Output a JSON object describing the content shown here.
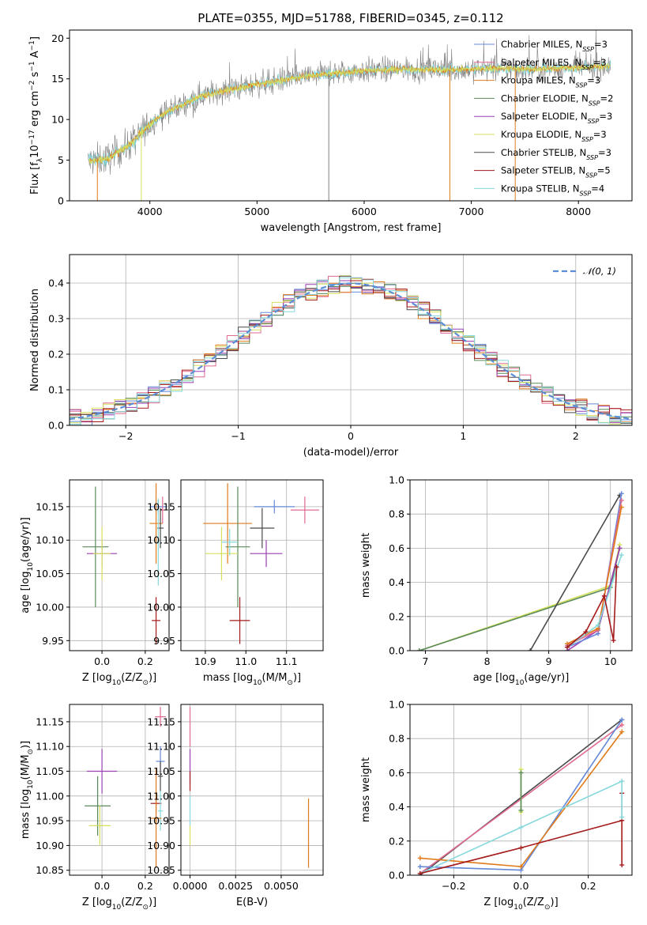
{
  "colors": {
    "chabrier_miles": "#6488d8",
    "salpeter_miles": "#e06a8f",
    "kroupa_miles": "#e07b1a",
    "chabrier_elodie": "#5a8a5a",
    "salpeter_elodie": "#9a3fb2",
    "kroupa_elodie": "#d6e05a",
    "chabrier_stelib": "#4a4a4a",
    "salpeter_stelib": "#a51a1a",
    "kroupa_stelib": "#86d8dc",
    "data_spectrum": "#808080",
    "normal_curve": "#5b8ed6"
  },
  "chart_data": [
    {
      "id": "spectrum",
      "type": "line",
      "title": "PLATE=0355, MJD=51788, FIBERID=0345, z=0.112",
      "xlabel": "wavelength [Angstrom, rest frame]",
      "ylabel_parts": [
        "Flux [f",
        "λ",
        "10",
        "−17",
        " erg cm",
        "−2",
        " s",
        "−1",
        " A",
        "−1",
        "]"
      ],
      "xlim": [
        3250,
        8500
      ],
      "ylim": [
        0,
        21
      ],
      "xticks": [
        4000,
        5000,
        6000,
        7000,
        8000
      ],
      "yticks": [
        0,
        5,
        10,
        15,
        20
      ],
      "grid": false,
      "legend_position": "top-right",
      "legend": [
        {
          "key": "chabrier_miles",
          "parts": [
            "Chabrier MILES, N",
            "SSP",
            "=3"
          ]
        },
        {
          "key": "salpeter_miles",
          "parts": [
            "Salpeter MILES, N",
            "SSP",
            "=3"
          ]
        },
        {
          "key": "kroupa_miles",
          "parts": [
            "Kroupa MILES, N",
            "SSP",
            "=3"
          ]
        },
        {
          "key": "chabrier_elodie",
          "parts": [
            "Chabrier ELODIE, N",
            "SSP",
            "=2"
          ]
        },
        {
          "key": "salpeter_elodie",
          "parts": [
            "Salpeter ELODIE, N",
            "SSP",
            "=3"
          ]
        },
        {
          "key": "kroupa_elodie",
          "parts": [
            "Kroupa ELODIE, N",
            "SSP",
            "=3"
          ]
        },
        {
          "key": "chabrier_stelib",
          "parts": [
            "Chabrier STELIB, N",
            "SSP",
            "=3"
          ]
        },
        {
          "key": "salpeter_stelib",
          "parts": [
            "Salpeter STELIB, N",
            "SSP",
            "=5"
          ]
        },
        {
          "key": "kroupa_stelib",
          "parts": [
            "Kroupa STELIB, N",
            "SSP",
            "=4"
          ]
        }
      ],
      "continuum": [
        [
          3400,
          4.8
        ],
        [
          3600,
          5.2
        ],
        [
          3800,
          6.8
        ],
        [
          3950,
          8.8
        ],
        [
          4100,
          10.5
        ],
        [
          4300,
          11.8
        ],
        [
          4500,
          13.0
        ],
        [
          4800,
          13.8
        ],
        [
          5000,
          14.3
        ],
        [
          5300,
          15.0
        ],
        [
          5600,
          15.5
        ],
        [
          6000,
          16.0
        ],
        [
          6400,
          16.2
        ],
        [
          6800,
          16.1
        ],
        [
          7200,
          16.3
        ],
        [
          7600,
          16.2
        ],
        [
          8000,
          16.4
        ],
        [
          8300,
          16.6
        ]
      ],
      "spikes_down": [
        [
          3510,
          0
        ],
        [
          3920,
          0
        ],
        [
          5670,
          0
        ],
        [
          6800,
          0
        ],
        [
          7410,
          0
        ]
      ]
    },
    {
      "id": "residuals",
      "type": "step",
      "xlabel": "(data-model)/error",
      "ylabel": "Normed distribution",
      "xlim": [
        -2.5,
        2.5
      ],
      "ylim": [
        0,
        0.48
      ],
      "xticks": [
        -2,
        -1,
        0,
        1,
        2
      ],
      "xtick_labels": [
        "−2",
        "−1",
        "0",
        "1",
        "2"
      ],
      "yticks": [
        0.0,
        0.1,
        0.2,
        0.3,
        0.4
      ],
      "ytick_labels": [
        "0.0",
        "0.1",
        "0.2",
        "0.3",
        "0.4"
      ],
      "grid": true,
      "legend_position": "top-right",
      "legend": [
        {
          "key": "normal_curve",
          "label": "𝒩(0, 1)"
        }
      ],
      "bin_width": 0.1
    },
    {
      "id": "age_vs_z",
      "type": "scatter",
      "xlabel_parts": [
        "Z [log",
        "10",
        "(Z/Z",
        "⊙",
        ")]"
      ],
      "ylabel_parts": [
        "age  [log",
        "10",
        "(age/yr)]"
      ],
      "xlim": [
        -0.15,
        0.31
      ],
      "ylim": [
        9.935,
        10.19
      ],
      "xticks": [
        0.0,
        0.2
      ],
      "xtick_labels": [
        "0.0",
        "0.2"
      ],
      "yticks": [
        9.95,
        10.0,
        10.05,
        10.1,
        10.15
      ],
      "ytick_labels": [
        "9.95",
        "10.00",
        "10.05",
        "10.10",
        "10.15"
      ],
      "grid": true,
      "points": [
        {
          "key": "chabrier_miles",
          "x": 0.26,
          "y": 10.15,
          "xerr": 0.04,
          "yerr": 0.01
        },
        {
          "key": "salpeter_miles",
          "x": 0.28,
          "y": 10.145,
          "xerr": 0.01,
          "yerr": 0.02
        },
        {
          "key": "kroupa_miles",
          "x": 0.25,
          "y": 10.125,
          "xerr": 0.03,
          "yerr": 0.06
        },
        {
          "key": "chabrier_elodie",
          "x": -0.03,
          "y": 10.09,
          "xerr": 0.06,
          "yerr": 0.09
        },
        {
          "key": "salpeter_elodie",
          "x": 0.0,
          "y": 10.08,
          "xerr": 0.07,
          "yerr": 0.02
        },
        {
          "key": "kroupa_elodie",
          "x": 0.0,
          "y": 10.08,
          "xerr": 0.04,
          "yerr": 0.04
        },
        {
          "key": "chabrier_stelib",
          "x": 0.27,
          "y": 10.118,
          "xerr": 0.015,
          "yerr": 0.03
        },
        {
          "key": "salpeter_stelib",
          "x": 0.25,
          "y": 9.98,
          "xerr": 0.02,
          "yerr": 0.035
        },
        {
          "key": "kroupa_stelib",
          "x": 0.26,
          "y": 10.097,
          "xerr": 0.01,
          "yerr": 0.065
        }
      ]
    },
    {
      "id": "age_vs_mass",
      "type": "scatter",
      "xlabel_parts": [
        "mass [log",
        "10",
        "(M/M",
        "⊙",
        ")]"
      ],
      "xlim": [
        10.84,
        11.19
      ],
      "ylim": [
        9.935,
        10.19
      ],
      "xticks": [
        10.9,
        11.0,
        11.1
      ],
      "xtick_labels": [
        "10.9",
        "11.0",
        "11.1"
      ],
      "yticks": [
        9.95,
        10.0,
        10.05,
        10.1,
        10.15
      ],
      "ytick_labels": [
        "9.95",
        "10.00",
        "10.05",
        "10.10",
        "10.15"
      ],
      "grid": true,
      "points": [
        {
          "key": "chabrier_miles",
          "x": 11.07,
          "y": 10.15,
          "xerr": 0.05,
          "yerr": 0.01
        },
        {
          "key": "salpeter_miles",
          "x": 11.145,
          "y": 10.145,
          "xerr": 0.035,
          "yerr": 0.02
        },
        {
          "key": "kroupa_miles",
          "x": 10.955,
          "y": 10.125,
          "xerr": 0.06,
          "yerr": 0.06
        },
        {
          "key": "chabrier_elodie",
          "x": 10.98,
          "y": 10.09,
          "xerr": 0.03,
          "yerr": 0.09
        },
        {
          "key": "salpeter_elodie",
          "x": 11.05,
          "y": 10.08,
          "xerr": 0.04,
          "yerr": 0.02
        },
        {
          "key": "kroupa_elodie",
          "x": 10.94,
          "y": 10.08,
          "xerr": 0.04,
          "yerr": 0.04
        },
        {
          "key": "chabrier_stelib",
          "x": 11.04,
          "y": 10.118,
          "xerr": 0.03,
          "yerr": 0.03
        },
        {
          "key": "salpeter_stelib",
          "x": 10.985,
          "y": 9.98,
          "xerr": 0.025,
          "yerr": 0.035
        },
        {
          "key": "kroupa_stelib",
          "x": 10.96,
          "y": 10.097,
          "xerr": 0.02,
          "yerr": 0.02
        }
      ]
    },
    {
      "id": "weight_vs_age",
      "type": "line",
      "xlabel_parts": [
        "age  [log",
        "10",
        "(age/yr)]"
      ],
      "ylabel": "mass weight",
      "xlim": [
        6.75,
        10.35
      ],
      "ylim": [
        0,
        1.0
      ],
      "xticks": [
        7,
        8,
        9,
        10
      ],
      "xtick_labels": [
        "7",
        "8",
        "9",
        "10"
      ],
      "yticks": [
        0.0,
        0.2,
        0.4,
        0.6,
        0.8,
        1.0
      ],
      "ytick_labels": [
        "0.0",
        "0.2",
        "0.4",
        "0.6",
        "0.8",
        "1.0"
      ],
      "grid": true,
      "series": [
        {
          "key": "kroupa_elodie",
          "points": [
            [
              6.9,
              0.0
            ],
            [
              10.0,
              0.38
            ],
            [
              10.15,
              0.62
            ]
          ]
        },
        {
          "key": "chabrier_elodie",
          "points": [
            [
              6.9,
              0.0
            ],
            [
              10.0,
              0.37
            ],
            [
              10.15,
              0.6
            ]
          ]
        },
        {
          "key": "salpeter_elodie",
          "points": [
            [
              9.3,
              0.0
            ],
            [
              9.8,
              0.12
            ],
            [
              10.15,
              0.6
            ]
          ]
        },
        {
          "key": "chabrier_stelib",
          "points": [
            [
              8.7,
              0.0
            ],
            [
              10.15,
              0.91
            ]
          ]
        },
        {
          "key": "chabrier_miles",
          "points": [
            [
              9.3,
              0.02
            ],
            [
              9.8,
              0.1
            ],
            [
              10.18,
              0.92
            ]
          ]
        },
        {
          "key": "salpeter_miles",
          "points": [
            [
              9.3,
              0.03
            ],
            [
              9.8,
              0.12
            ],
            [
              10.18,
              0.88
            ]
          ]
        },
        {
          "key": "kroupa_miles",
          "points": [
            [
              9.3,
              0.04
            ],
            [
              9.8,
              0.13
            ],
            [
              10.18,
              0.84
            ]
          ]
        },
        {
          "key": "kroupa_stelib",
          "points": [
            [
              9.3,
              0.02
            ],
            [
              9.8,
              0.15
            ],
            [
              10.18,
              0.56
            ]
          ]
        },
        {
          "key": "salpeter_stelib",
          "points": [
            [
              9.3,
              0.02
            ],
            [
              9.6,
              0.11
            ],
            [
              9.9,
              0.32
            ],
            [
              10.05,
              0.06
            ],
            [
              10.1,
              0.49
            ]
          ]
        }
      ]
    },
    {
      "id": "mass_vs_z",
      "type": "scatter",
      "xlabel_parts": [
        "Z [log",
        "10",
        "(Z/Z",
        "⊙",
        ")]"
      ],
      "ylabel_parts": [
        "mass [log",
        "10",
        "(M/M",
        "⊙",
        ")]"
      ],
      "xlim": [
        -0.15,
        0.31
      ],
      "ylim": [
        10.84,
        11.185
      ],
      "xticks": [
        0.0,
        0.2
      ],
      "xtick_labels": [
        "0.0",
        "0.2"
      ],
      "yticks": [
        10.85,
        10.9,
        10.95,
        11.0,
        11.05,
        11.1,
        11.15
      ],
      "ytick_labels": [
        "10.85",
        "10.90",
        "10.95",
        "11.00",
        "11.05",
        "11.10",
        "11.15"
      ],
      "grid": true,
      "points": [
        {
          "key": "salpeter_miles",
          "x": 0.27,
          "y": 11.16,
          "xerr": 0.025,
          "yerr": 0.02
        },
        {
          "key": "chabrier_miles",
          "x": 0.27,
          "y": 11.07,
          "xerr": 0.02,
          "yerr": 0.03
        },
        {
          "key": "salpeter_elodie",
          "x": 0.0,
          "y": 11.05,
          "xerr": 0.07,
          "yerr": 0.045
        },
        {
          "key": "chabrier_stelib",
          "x": 0.27,
          "y": 11.04,
          "xerr": 0.012,
          "yerr": 0.03
        },
        {
          "key": "salpeter_stelib",
          "x": 0.25,
          "y": 10.985,
          "xerr": 0.025,
          "yerr": 0.02
        },
        {
          "key": "chabrier_elodie",
          "x": -0.02,
          "y": 10.98,
          "xerr": 0.06,
          "yerr": 0.06
        },
        {
          "key": "kroupa_stelib",
          "x": 0.27,
          "y": 10.97,
          "xerr": 0.01,
          "yerr": 0.04
        },
        {
          "key": "kroupa_miles",
          "x": 0.25,
          "y": 10.955,
          "xerr": 0.025,
          "yerr": 0.1
        },
        {
          "key": "kroupa_elodie",
          "x": -0.01,
          "y": 10.94,
          "xerr": 0.05,
          "yerr": 0.04
        }
      ]
    },
    {
      "id": "mass_vs_ebv",
      "type": "scatter",
      "xlabel": "E(B-V)",
      "xlim": [
        -0.0005,
        0.0073
      ],
      "ylim": [
        10.84,
        11.185
      ],
      "xticks": [
        0.0,
        0.0025,
        0.005
      ],
      "xtick_labels": [
        "0.0000",
        "0.0025",
        "0.0050"
      ],
      "yticks": [
        10.85,
        10.9,
        10.95,
        11.0,
        11.05,
        11.1,
        11.15
      ],
      "ytick_labels": [
        "10.85",
        "10.90",
        "10.95",
        "11.00",
        "11.05",
        "11.10",
        "11.15"
      ],
      "grid": true,
      "points": [
        {
          "key": "salpeter_miles",
          "x": 0.0,
          "y": 11.14,
          "xerr": 0.0,
          "yerr": 0.04
        },
        {
          "key": "salpeter_elodie",
          "x": 0.0,
          "y": 11.06,
          "xerr": 0.0,
          "yerr": 0.035
        },
        {
          "key": "salpeter_stelib",
          "x": 0.0,
          "y": 11.03,
          "xerr": 0.0,
          "yerr": 0.02
        },
        {
          "key": "kroupa_stelib",
          "x": 0.0,
          "y": 10.97,
          "xerr": 0.0,
          "yerr": 0.03
        },
        {
          "key": "kroupa_elodie",
          "x": 0.0,
          "y": 10.92,
          "xerr": 0.0,
          "yerr": 0.02
        },
        {
          "key": "kroupa_miles",
          "x": 0.0065,
          "y": 10.925,
          "xerr": 0.0,
          "yerr": 0.07
        }
      ]
    },
    {
      "id": "weight_vs_z",
      "type": "line",
      "xlabel_parts": [
        "Z [log",
        "10",
        "(Z/Z",
        "⊙",
        ")]"
      ],
      "ylabel": "mass weight",
      "xlim": [
        -0.33,
        0.33
      ],
      "ylim": [
        0,
        1.0
      ],
      "xticks": [
        -0.2,
        0.0,
        0.2
      ],
      "xtick_labels": [
        "−0.2",
        "0.0",
        "0.2"
      ],
      "yticks": [
        0.0,
        0.2,
        0.4,
        0.6,
        0.8,
        1.0
      ],
      "ytick_labels": [
        "0.0",
        "0.2",
        "0.4",
        "0.6",
        "0.8",
        "1.0"
      ],
      "grid": true,
      "series": [
        {
          "key": "chabrier_stelib",
          "points": [
            [
              -0.3,
              0.0
            ],
            [
              0.3,
              0.91
            ]
          ]
        },
        {
          "key": "salpeter_miles",
          "points": [
            [
              -0.3,
              0.01
            ],
            [
              0.3,
              0.88
            ]
          ]
        },
        {
          "key": "chabrier_miles",
          "points": [
            [
              -0.3,
              0.05
            ],
            [
              0.0,
              0.03
            ],
            [
              0.3,
              0.91
            ]
          ]
        },
        {
          "key": "kroupa_miles",
          "points": [
            [
              -0.3,
              0.1
            ],
            [
              0.0,
              0.05
            ],
            [
              0.3,
              0.84
            ]
          ]
        },
        {
          "key": "kroupa_stelib",
          "points": [
            [
              -0.3,
              0.01
            ],
            [
              0.0,
              0.28
            ],
            [
              0.3,
              0.55
            ]
          ]
        },
        {
          "key": "salpeter_stelib",
          "points": [
            [
              -0.3,
              0.01
            ],
            [
              0.0,
              0.16
            ],
            [
              0.3,
              0.32
            ]
          ]
        },
        {
          "key": "kroupa_elodie",
          "points": [
            [
              0.0,
              0.37
            ],
            [
              0.0,
              0.62
            ]
          ]
        },
        {
          "key": "chabrier_elodie",
          "points": [
            [
              0.0,
              0.38
            ],
            [
              0.0,
              0.6
            ]
          ]
        },
        {
          "key": "salpeter_stelib",
          "points": [
            [
              0.3,
              0.06
            ],
            [
              0.3,
              0.48
            ]
          ]
        },
        {
          "key": "kroupa_stelib",
          "points": [
            [
              0.3,
              0.34
            ],
            [
              0.3,
              0.55
            ]
          ]
        }
      ]
    }
  ]
}
